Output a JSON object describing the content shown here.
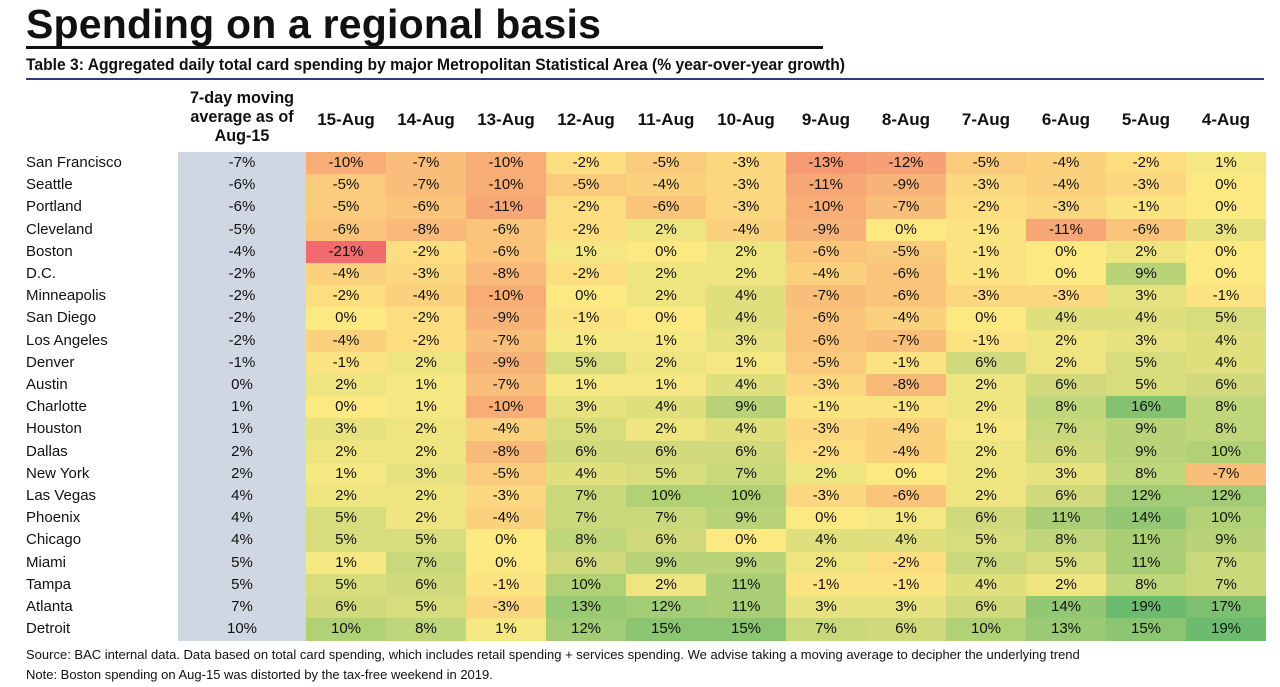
{
  "title": "Spending on a regional basis",
  "subtitle": "Table 3: Aggregated daily total card spending by major Metropolitan Statistical Area (% year-over-year growth)",
  "footer": {
    "source": "Source: BAC internal data. Data based on total card spending, which includes retail spending + services spending. We advise taking a moving average to decipher the underlying trend",
    "note": "Note: Boston spending on Aug-15 was distorted by the tax-free weekend in 2019."
  },
  "colors": {
    "low": "#f26a6b",
    "mid": "#fde982",
    "high": "#6dbb6e",
    "ma_column": "#cfd7e2",
    "rule": "#2a3f7e"
  },
  "chart_data": {
    "type": "table",
    "moving_average_header": "7-day moving average as of Aug-15",
    "columns": [
      "15-Aug",
      "14-Aug",
      "13-Aug",
      "12-Aug",
      "11-Aug",
      "10-Aug",
      "9-Aug",
      "8-Aug",
      "7-Aug",
      "6-Aug",
      "5-Aug",
      "4-Aug"
    ],
    "unit": "%",
    "rows": [
      {
        "name": "San Francisco",
        "ma": -7,
        "values": [
          -10,
          -7,
          -10,
          -2,
          -5,
          -3,
          -13,
          -12,
          -5,
          -4,
          -2,
          1
        ]
      },
      {
        "name": "Seattle",
        "ma": -6,
        "values": [
          -5,
          -7,
          -10,
          -5,
          -4,
          -3,
          -11,
          -9,
          -3,
          -4,
          -3,
          0
        ]
      },
      {
        "name": "Portland",
        "ma": -6,
        "values": [
          -5,
          -6,
          -11,
          -2,
          -6,
          -3,
          -10,
          -7,
          -2,
          -3,
          -1,
          0
        ]
      },
      {
        "name": "Cleveland",
        "ma": -5,
        "values": [
          -6,
          -8,
          -6,
          -2,
          2,
          -4,
          -9,
          0,
          -1,
          -11,
          -6,
          3
        ]
      },
      {
        "name": "Boston",
        "ma": -4,
        "values": [
          -21,
          -2,
          -6,
          1,
          0,
          2,
          -6,
          -5,
          -1,
          0,
          2,
          0
        ]
      },
      {
        "name": "D.C.",
        "ma": -2,
        "values": [
          -4,
          -3,
          -8,
          -2,
          2,
          2,
          -4,
          -6,
          -1,
          0,
          9,
          0
        ]
      },
      {
        "name": "Minneapolis",
        "ma": -2,
        "values": [
          -2,
          -4,
          -10,
          0,
          2,
          4,
          -7,
          -6,
          -3,
          -3,
          3,
          -1
        ]
      },
      {
        "name": "San Diego",
        "ma": -2,
        "values": [
          0,
          -2,
          -9,
          -1,
          0,
          4,
          -6,
          -4,
          0,
          4,
          4,
          5
        ]
      },
      {
        "name": "Los Angeles",
        "ma": -2,
        "values": [
          -4,
          -2,
          -7,
          1,
          1,
          3,
          -6,
          -7,
          -1,
          2,
          3,
          4
        ]
      },
      {
        "name": "Denver",
        "ma": -1,
        "values": [
          -1,
          2,
          -9,
          5,
          2,
          1,
          -5,
          -1,
          6,
          2,
          5,
          4
        ]
      },
      {
        "name": "Austin",
        "ma": 0,
        "values": [
          2,
          1,
          -7,
          1,
          1,
          4,
          -3,
          -8,
          2,
          6,
          5,
          6
        ]
      },
      {
        "name": "Charlotte",
        "ma": 1,
        "values": [
          0,
          1,
          -10,
          3,
          4,
          9,
          -1,
          -1,
          2,
          8,
          16,
          8
        ]
      },
      {
        "name": "Houston",
        "ma": 1,
        "values": [
          3,
          2,
          -4,
          5,
          2,
          4,
          -3,
          -4,
          1,
          7,
          9,
          8
        ]
      },
      {
        "name": "Dallas",
        "ma": 2,
        "values": [
          2,
          2,
          -8,
          6,
          6,
          6,
          -2,
          -4,
          2,
          6,
          9,
          10
        ]
      },
      {
        "name": "New York",
        "ma": 2,
        "values": [
          1,
          3,
          -5,
          4,
          5,
          7,
          2,
          0,
          2,
          3,
          8,
          -7
        ]
      },
      {
        "name": "Las Vegas",
        "ma": 4,
        "values": [
          2,
          2,
          -3,
          7,
          10,
          10,
          -3,
          -6,
          2,
          6,
          12,
          12
        ]
      },
      {
        "name": "Phoenix",
        "ma": 4,
        "values": [
          5,
          2,
          -4,
          7,
          7,
          9,
          0,
          1,
          6,
          11,
          14,
          10
        ]
      },
      {
        "name": "Chicago",
        "ma": 4,
        "values": [
          5,
          5,
          0,
          8,
          6,
          0,
          4,
          4,
          5,
          8,
          11,
          9
        ]
      },
      {
        "name": "Miami",
        "ma": 5,
        "values": [
          1,
          7,
          0,
          6,
          9,
          9,
          2,
          -2,
          7,
          5,
          11,
          7
        ]
      },
      {
        "name": "Tampa",
        "ma": 5,
        "values": [
          5,
          6,
          -1,
          10,
          2,
          11,
          -1,
          -1,
          4,
          2,
          8,
          7
        ]
      },
      {
        "name": "Atlanta",
        "ma": 7,
        "values": [
          6,
          5,
          -3,
          13,
          12,
          11,
          3,
          3,
          6,
          14,
          19,
          17
        ]
      },
      {
        "name": "Detroit",
        "ma": 10,
        "values": [
          10,
          8,
          1,
          12,
          15,
          15,
          7,
          6,
          10,
          13,
          15,
          19
        ]
      }
    ]
  }
}
